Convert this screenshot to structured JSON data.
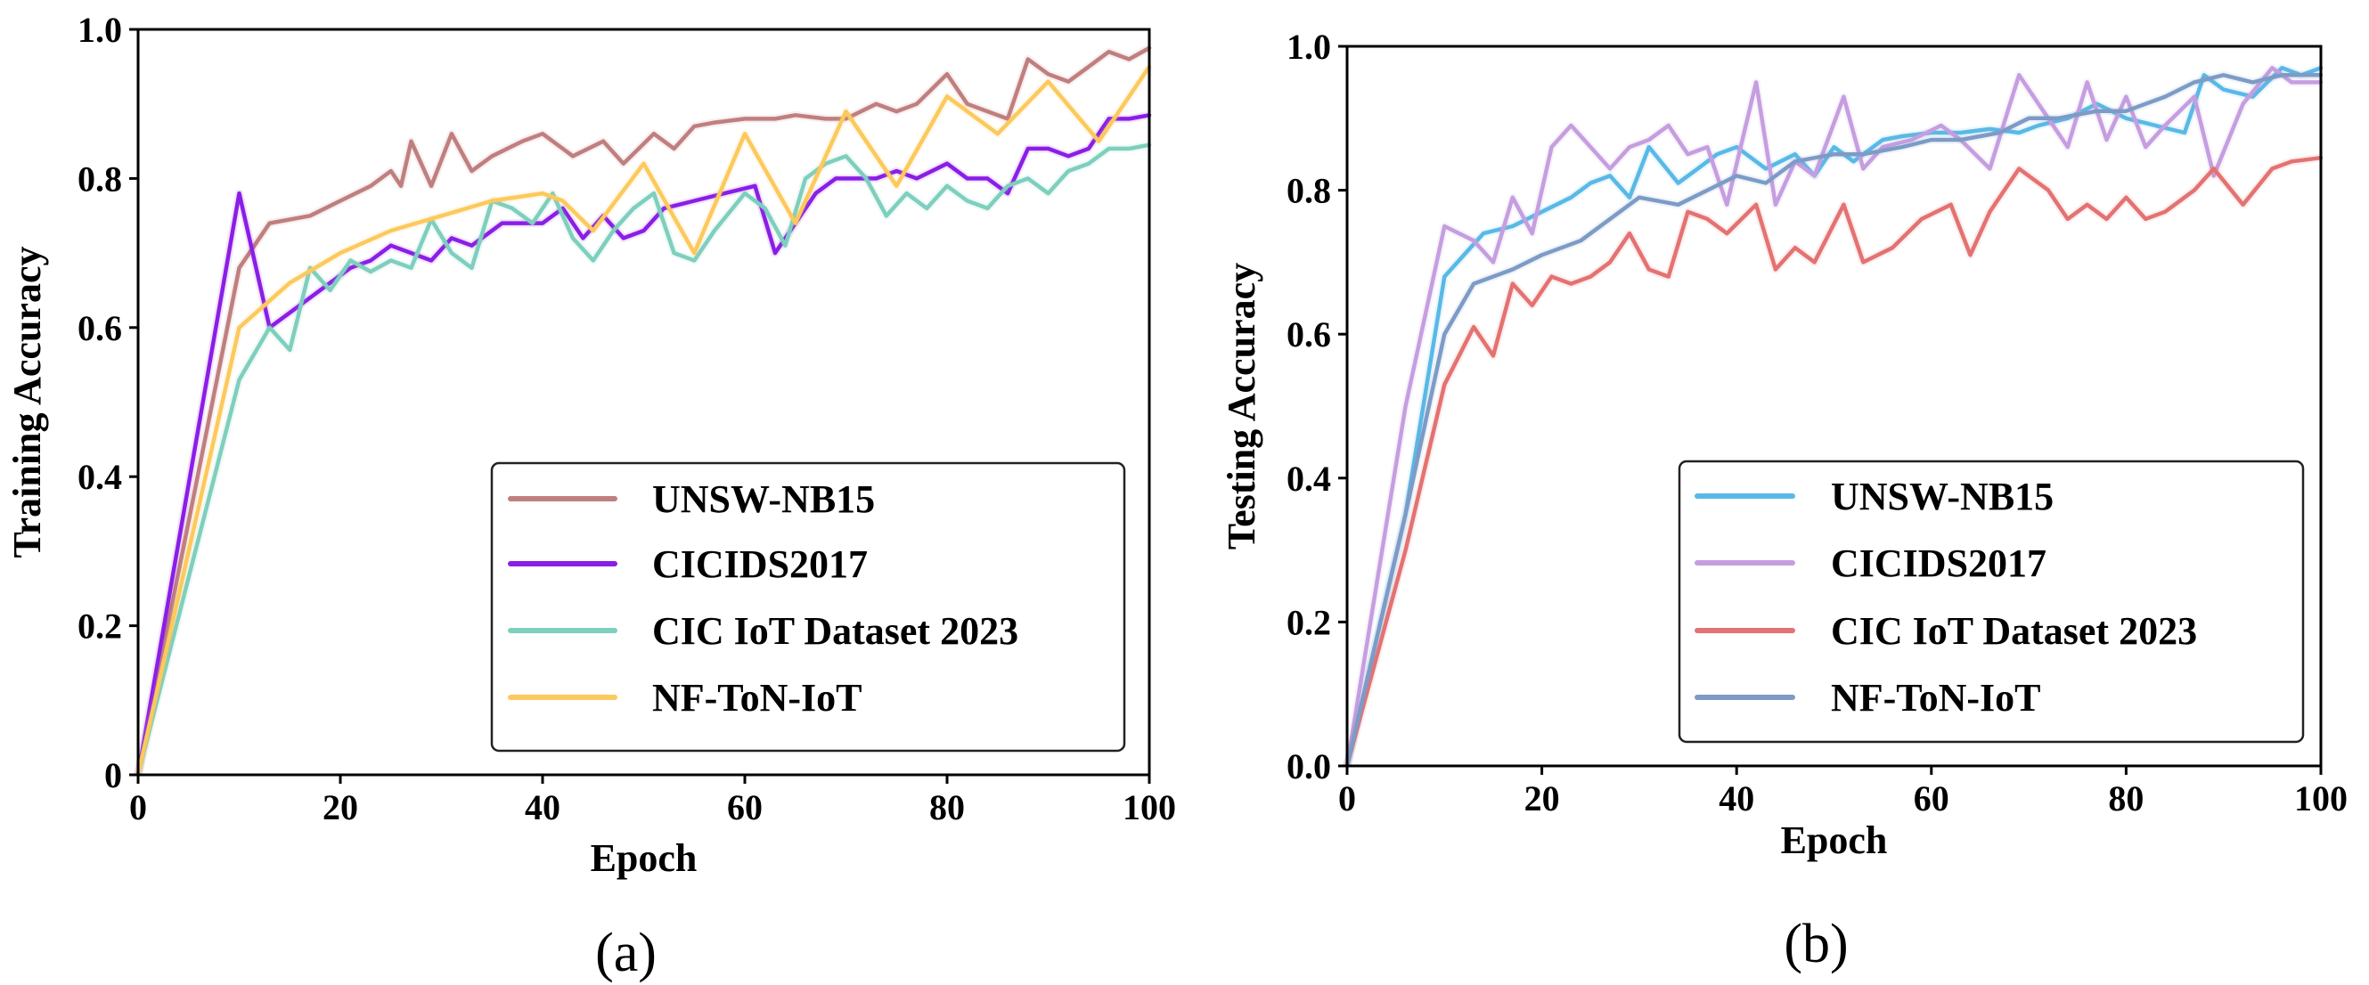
{
  "chart_data": [
    {
      "type": "line",
      "panel_label": "(a)",
      "xlabel": "Epoch",
      "ylabel": "Training Accuracy",
      "xlim": [
        0,
        100
      ],
      "ylim": [
        0,
        1.0
      ],
      "xticks": [
        0,
        20,
        40,
        60,
        80,
        100
      ],
      "xtick_labels": [
        "0",
        "20",
        "40",
        "60",
        "80",
        "100"
      ],
      "yticks": [
        0,
        0.2,
        0.4,
        0.6,
        0.8,
        1.0
      ],
      "ytick_labels": [
        "0",
        "0.2",
        "0.4",
        "0.6",
        "0.8",
        "1.0"
      ],
      "legend_position": "lower-right",
      "series": [
        {
          "name": "UNSW-NB15",
          "color": "#c07f7f",
          "x": [
            0,
            10,
            13,
            17,
            20,
            23,
            25,
            26,
            27,
            29,
            31,
            33,
            35,
            38,
            40,
            43,
            46,
            48,
            51,
            53,
            55,
            57,
            60,
            63,
            65,
            68,
            70,
            73,
            75,
            77,
            80,
            82,
            84,
            86,
            88,
            90,
            92,
            94,
            96,
            98,
            100
          ],
          "y": [
            0,
            0.68,
            0.74,
            0.75,
            0.77,
            0.79,
            0.81,
            0.79,
            0.85,
            0.79,
            0.86,
            0.81,
            0.83,
            0.85,
            0.86,
            0.83,
            0.85,
            0.82,
            0.86,
            0.84,
            0.87,
            0.875,
            0.88,
            0.88,
            0.885,
            0.88,
            0.88,
            0.9,
            0.89,
            0.9,
            0.94,
            0.9,
            0.89,
            0.88,
            0.96,
            0.94,
            0.93,
            0.95,
            0.97,
            0.96,
            0.975
          ]
        },
        {
          "name": "CICIDS2017",
          "color": "#8a1ee6",
          "x": [
            0,
            10,
            13,
            15,
            17,
            19,
            21,
            23,
            25,
            27,
            29,
            31,
            33,
            36,
            38,
            40,
            42,
            44,
            46,
            48,
            50,
            52,
            55,
            58,
            61,
            63,
            65,
            67,
            69,
            71,
            73,
            75,
            77,
            80,
            82,
            84,
            86,
            88,
            90,
            92,
            94,
            96,
            98,
            100
          ],
          "y": [
            0,
            0.78,
            0.6,
            0.62,
            0.64,
            0.66,
            0.68,
            0.69,
            0.71,
            0.7,
            0.69,
            0.72,
            0.71,
            0.74,
            0.74,
            0.74,
            0.76,
            0.72,
            0.75,
            0.72,
            0.73,
            0.76,
            0.77,
            0.78,
            0.79,
            0.7,
            0.74,
            0.78,
            0.8,
            0.8,
            0.8,
            0.81,
            0.8,
            0.82,
            0.8,
            0.8,
            0.78,
            0.84,
            0.84,
            0.83,
            0.84,
            0.88,
            0.88,
            0.885
          ]
        },
        {
          "name": "CIC IoT Dataset 2023",
          "color": "#7ecfbd",
          "x": [
            0,
            10,
            13,
            15,
            17,
            19,
            21,
            23,
            25,
            27,
            29,
            31,
            33,
            35,
            37,
            39,
            41,
            43,
            45,
            47,
            49,
            51,
            53,
            55,
            57,
            60,
            62,
            64,
            66,
            68,
            70,
            72,
            74,
            76,
            78,
            80,
            82,
            84,
            86,
            88,
            90,
            92,
            94,
            96,
            98,
            100
          ],
          "y": [
            0,
            0.53,
            0.6,
            0.57,
            0.68,
            0.65,
            0.69,
            0.675,
            0.69,
            0.68,
            0.745,
            0.7,
            0.68,
            0.77,
            0.76,
            0.74,
            0.78,
            0.72,
            0.69,
            0.73,
            0.76,
            0.78,
            0.7,
            0.69,
            0.73,
            0.78,
            0.76,
            0.71,
            0.8,
            0.82,
            0.83,
            0.8,
            0.75,
            0.78,
            0.76,
            0.79,
            0.77,
            0.76,
            0.79,
            0.8,
            0.78,
            0.81,
            0.82,
            0.84,
            0.84,
            0.845
          ]
        },
        {
          "name": "NF-ToN-IoT",
          "color": "#fcc95c",
          "x": [
            0,
            10,
            15,
            20,
            25,
            30,
            35,
            40,
            42,
            45,
            50,
            55,
            60,
            65,
            70,
            75,
            80,
            85,
            90,
            95,
            100
          ],
          "y": [
            0,
            0.6,
            0.66,
            0.7,
            0.73,
            0.75,
            0.77,
            0.78,
            0.77,
            0.73,
            0.82,
            0.7,
            0.86,
            0.74,
            0.89,
            0.79,
            0.91,
            0.86,
            0.93,
            0.85,
            0.95
          ]
        }
      ]
    },
    {
      "type": "line",
      "panel_label": "(b)",
      "xlabel": "Epoch",
      "ylabel": "Testing Accuracy",
      "xlim": [
        0,
        100
      ],
      "ylim": [
        0,
        1.0
      ],
      "xticks": [
        0,
        20,
        40,
        60,
        80,
        100
      ],
      "xtick_labels": [
        "0",
        "20",
        "40",
        "60",
        "80",
        "100"
      ],
      "yticks": [
        0,
        0.2,
        0.4,
        0.6,
        0.8,
        1.0
      ],
      "ytick_labels": [
        "0.0",
        "0.2",
        "0.4",
        "0.6",
        "0.8",
        "1.0"
      ],
      "legend_position": "lower-right",
      "series": [
        {
          "name": "UNSW-NB15",
          "color": "#59b9e6",
          "x": [
            0,
            6,
            10,
            14,
            17,
            20,
            23,
            25,
            27,
            29,
            31,
            34,
            36,
            38,
            40,
            43,
            46,
            48,
            50,
            52,
            55,
            57,
            60,
            63,
            66,
            69,
            71,
            74,
            77,
            80,
            83,
            86,
            88,
            90,
            93,
            96,
            98,
            100
          ],
          "y": [
            0,
            0.35,
            0.68,
            0.74,
            0.75,
            0.77,
            0.79,
            0.81,
            0.82,
            0.79,
            0.86,
            0.81,
            0.83,
            0.85,
            0.86,
            0.83,
            0.85,
            0.82,
            0.86,
            0.84,
            0.87,
            0.875,
            0.88,
            0.88,
            0.885,
            0.88,
            0.89,
            0.9,
            0.92,
            0.9,
            0.89,
            0.88,
            0.96,
            0.94,
            0.93,
            0.97,
            0.96,
            0.97
          ]
        },
        {
          "name": "CICIDS2017",
          "color": "#c59ee0",
          "x": [
            0,
            6,
            10,
            13,
            15,
            17,
            19,
            21,
            23,
            25,
            27,
            29,
            31,
            33,
            35,
            37,
            39,
            42,
            44,
            46,
            48,
            51,
            53,
            55,
            58,
            61,
            63,
            66,
            69,
            71,
            74,
            76,
            78,
            80,
            82,
            84,
            87,
            89,
            92,
            95,
            97,
            100
          ],
          "y": [
            0,
            0.5,
            0.75,
            0.73,
            0.7,
            0.79,
            0.74,
            0.86,
            0.89,
            0.86,
            0.83,
            0.86,
            0.87,
            0.89,
            0.85,
            0.86,
            0.78,
            0.95,
            0.78,
            0.84,
            0.82,
            0.93,
            0.83,
            0.86,
            0.87,
            0.89,
            0.87,
            0.83,
            0.96,
            0.92,
            0.86,
            0.95,
            0.87,
            0.93,
            0.86,
            0.89,
            0.93,
            0.82,
            0.92,
            0.97,
            0.95,
            0.95
          ]
        },
        {
          "name": "CIC IoT Dataset 2023",
          "color": "#e47272",
          "x": [
            0,
            6,
            10,
            13,
            15,
            17,
            19,
            21,
            23,
            25,
            27,
            29,
            31,
            33,
            35,
            37,
            39,
            42,
            44,
            46,
            48,
            51,
            53,
            56,
            59,
            62,
            64,
            66,
            69,
            72,
            74,
            76,
            78,
            80,
            82,
            84,
            87,
            89,
            92,
            95,
            97,
            100
          ],
          "y": [
            0,
            0.3,
            0.53,
            0.61,
            0.57,
            0.67,
            0.64,
            0.68,
            0.67,
            0.68,
            0.7,
            0.74,
            0.69,
            0.68,
            0.77,
            0.76,
            0.74,
            0.78,
            0.69,
            0.72,
            0.7,
            0.78,
            0.7,
            0.72,
            0.76,
            0.78,
            0.71,
            0.77,
            0.83,
            0.8,
            0.76,
            0.78,
            0.76,
            0.79,
            0.76,
            0.77,
            0.8,
            0.83,
            0.78,
            0.83,
            0.84,
            0.845
          ]
        },
        {
          "name": "NF-ToN-IoT",
          "color": "#7d9bc6",
          "x": [
            0,
            6,
            10,
            13,
            17,
            20,
            24,
            27,
            30,
            34,
            37,
            40,
            43,
            46,
            50,
            53,
            57,
            60,
            63,
            67,
            70,
            73,
            77,
            80,
            84,
            87,
            90,
            93,
            96,
            100
          ],
          "y": [
            0,
            0.35,
            0.6,
            0.67,
            0.69,
            0.71,
            0.73,
            0.76,
            0.79,
            0.78,
            0.8,
            0.82,
            0.81,
            0.84,
            0.85,
            0.85,
            0.86,
            0.87,
            0.87,
            0.88,
            0.9,
            0.9,
            0.91,
            0.91,
            0.93,
            0.95,
            0.96,
            0.95,
            0.96,
            0.96
          ]
        }
      ]
    }
  ]
}
